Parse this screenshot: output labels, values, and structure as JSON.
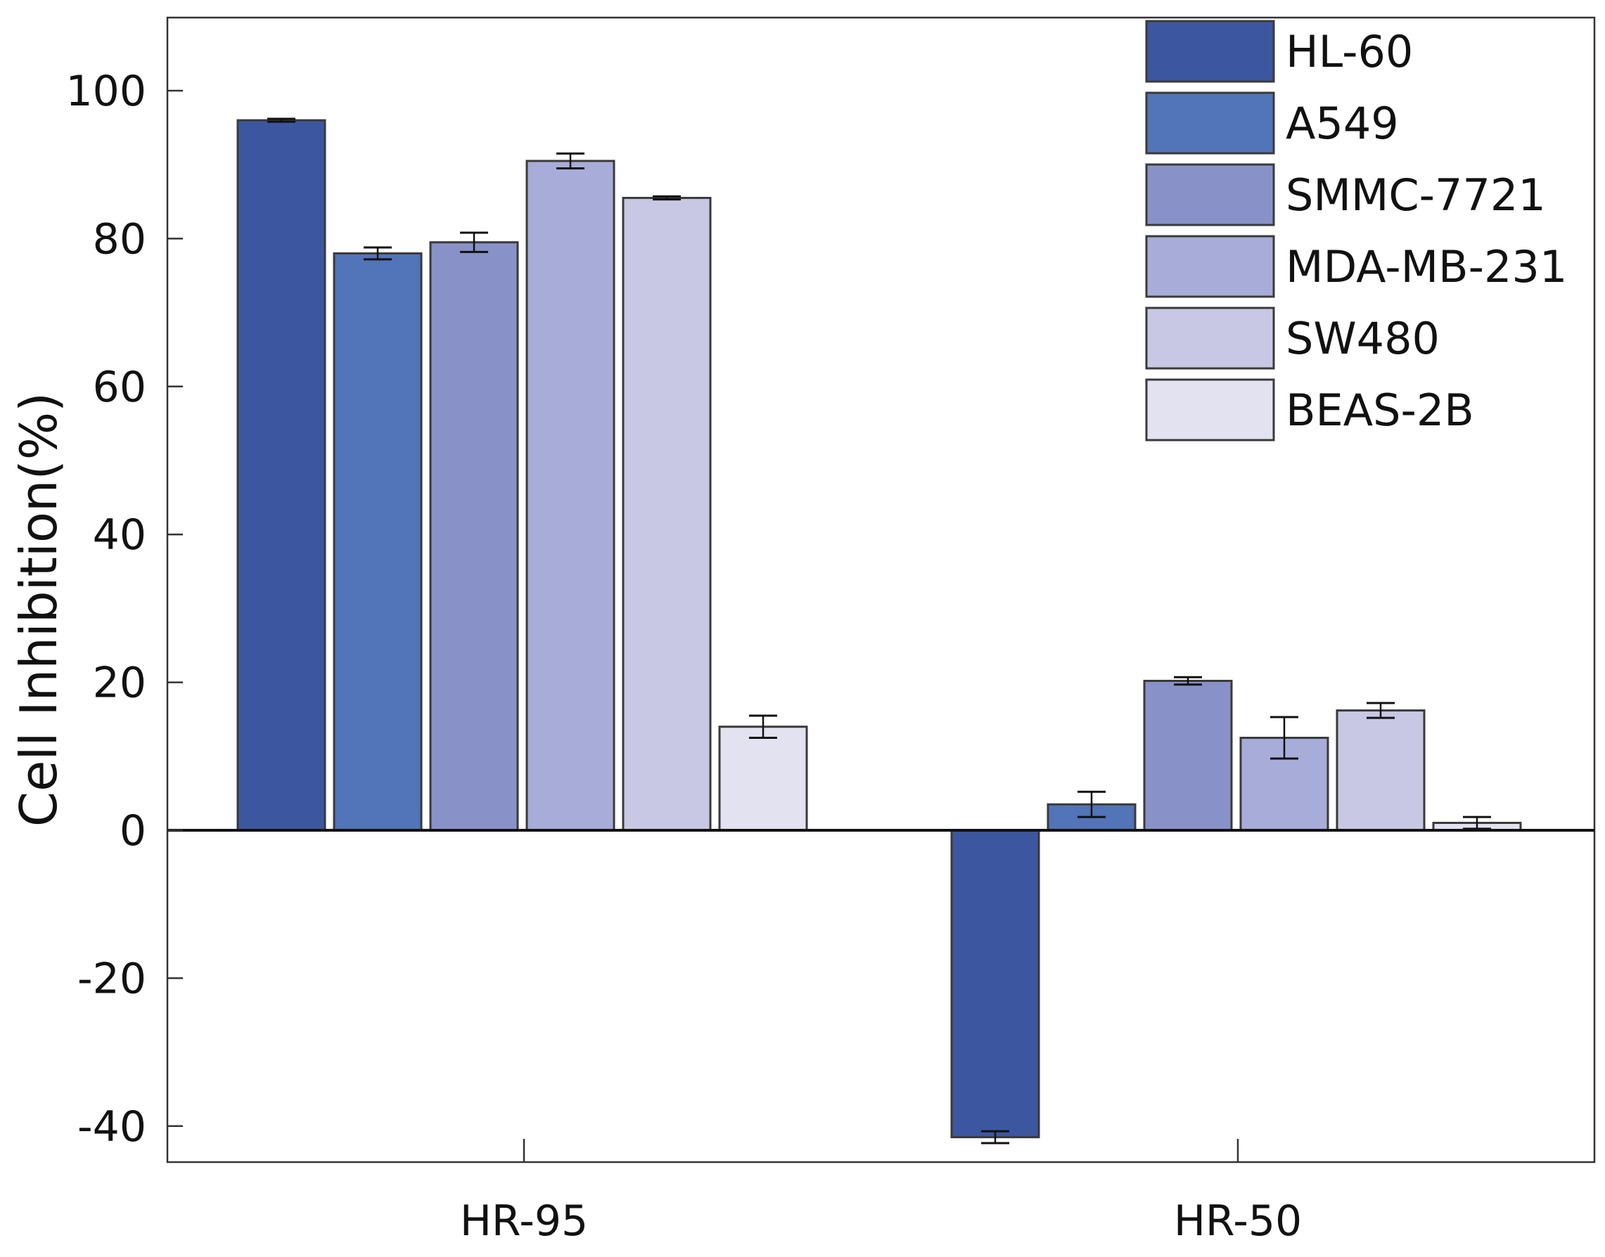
{
  "chart_data": {
    "type": "bar",
    "title": "",
    "xlabel": "",
    "ylabel": "Cell Inhibition(%)",
    "ylim": [
      -45,
      110
    ],
    "yticks": [
      "100",
      "80",
      "60",
      "40",
      "20",
      "0",
      "-20",
      "-40"
    ],
    "ytick_values": [
      100,
      80,
      60,
      40,
      20,
      0,
      -20,
      -40
    ],
    "categories": [
      "HR-95",
      "HR-50"
    ],
    "legend_position": "top-right",
    "series": [
      {
        "name": "HL-60",
        "color": "#3d56a0",
        "values": [
          96,
          -41.5
        ],
        "errors": [
          0.2,
          0.8
        ]
      },
      {
        "name": "A549",
        "color": "#5274b8",
        "values": [
          78,
          3.5
        ],
        "errors": [
          0.8,
          1.7
        ]
      },
      {
        "name": "SMMC-7721",
        "color": "#8892c8",
        "values": [
          79.5,
          20.2
        ],
        "errors": [
          1.3,
          0.5
        ]
      },
      {
        "name": "MDA-MB-231",
        "color": "#a8acd8",
        "values": [
          90.5,
          12.5
        ],
        "errors": [
          1.0,
          2.8
        ]
      },
      {
        "name": "SW480",
        "color": "#c8c8e4",
        "values": [
          85.5,
          16.2
        ],
        "errors": [
          0.2,
          1.0
        ]
      },
      {
        "name": "BEAS-2B",
        "color": "#e2e2f0",
        "values": [
          14,
          1.0
        ],
        "errors": [
          1.5,
          0.8
        ]
      }
    ]
  }
}
